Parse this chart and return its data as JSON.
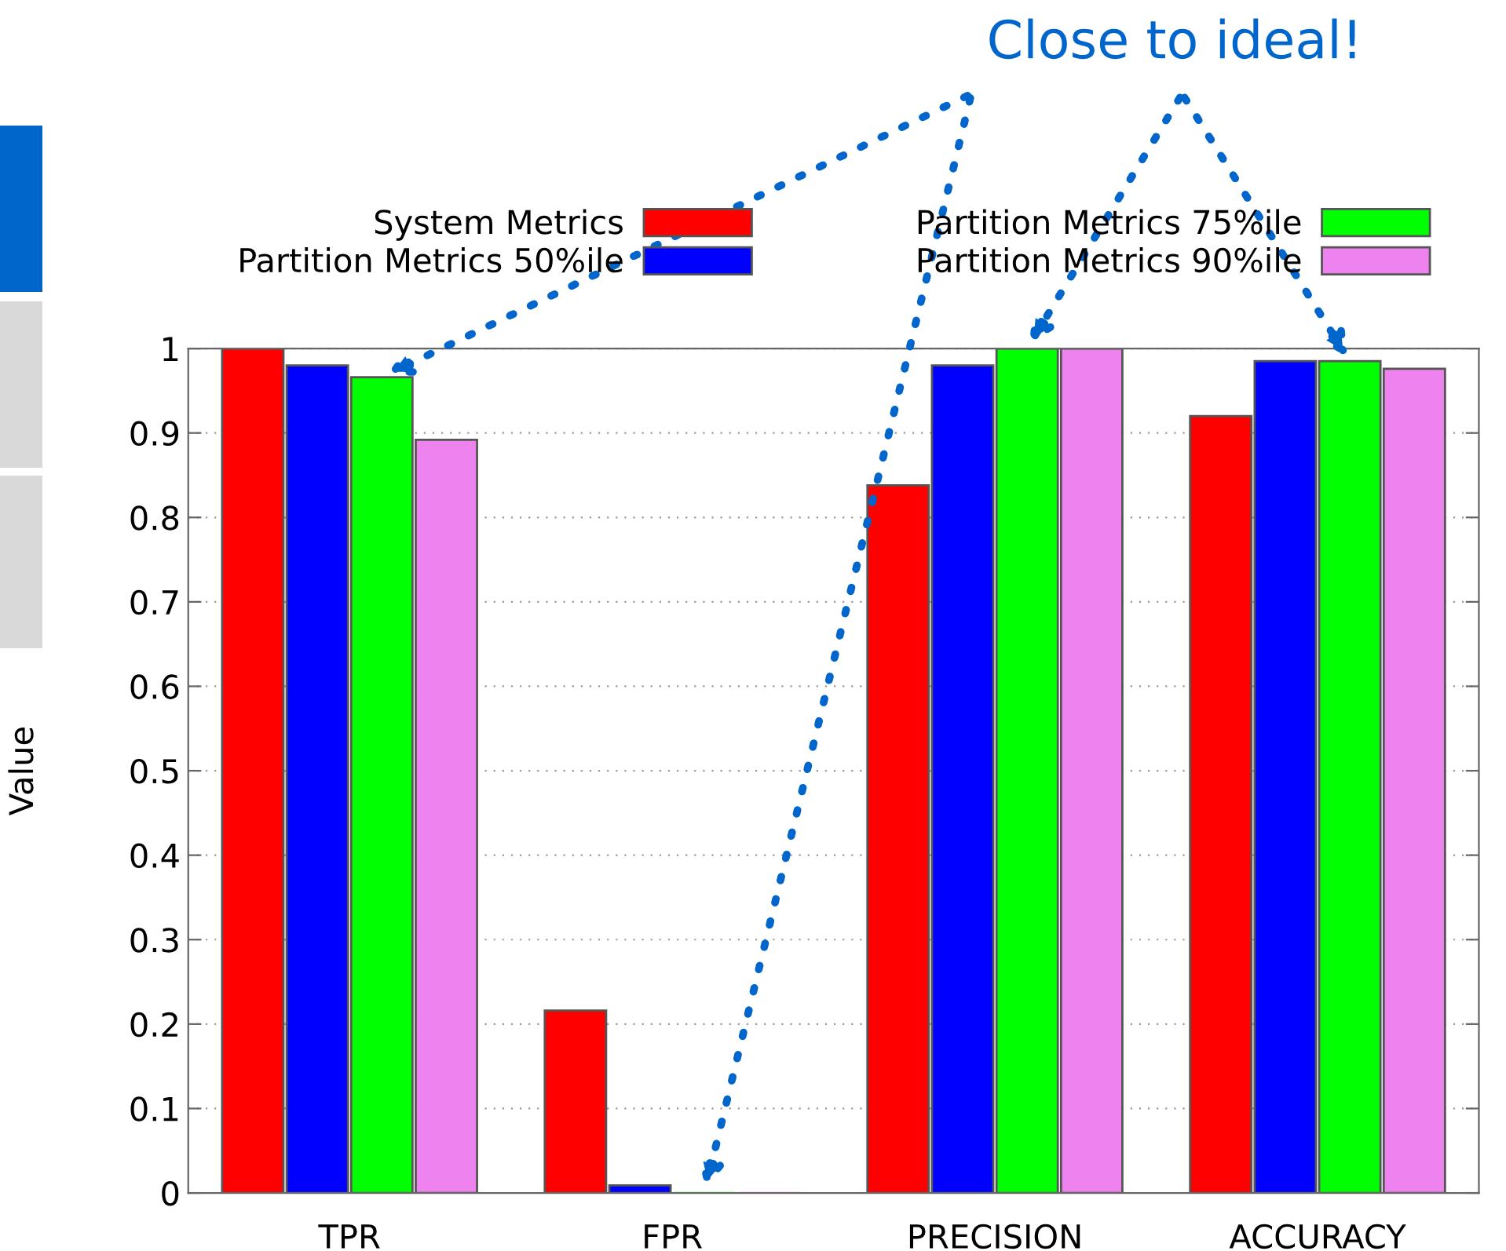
{
  "chart_data": {
    "type": "bar",
    "ylabel": "Value",
    "categories": [
      "TPR",
      "FPR",
      "PRECISION",
      "ACCURACY"
    ],
    "series": [
      {
        "name": "System Metrics",
        "color": "#ff0000",
        "values": [
          1.0,
          0.216,
          0.838,
          0.92
        ]
      },
      {
        "name": "Partition Metrics 50%ile",
        "color": "#0000ff",
        "values": [
          0.98,
          0.009,
          0.98,
          0.985
        ]
      },
      {
        "name": "Partition Metrics 75%ile",
        "color": "#00ff00",
        "values": [
          0.966,
          0,
          1.0,
          0.985
        ]
      },
      {
        "name": "Partition Metrics 90%ile",
        "color": "#ee82ee",
        "values": [
          0.892,
          0,
          1.0,
          0.976
        ]
      }
    ],
    "ylim": [
      0,
      1
    ],
    "yticks": [
      0,
      0.1,
      0.2,
      0.3,
      0.4,
      0.5,
      0.6,
      0.7,
      0.8,
      0.9,
      1
    ],
    "grid": "y",
    "legend": "top",
    "annotations": [
      "Close to ideal!"
    ]
  }
}
